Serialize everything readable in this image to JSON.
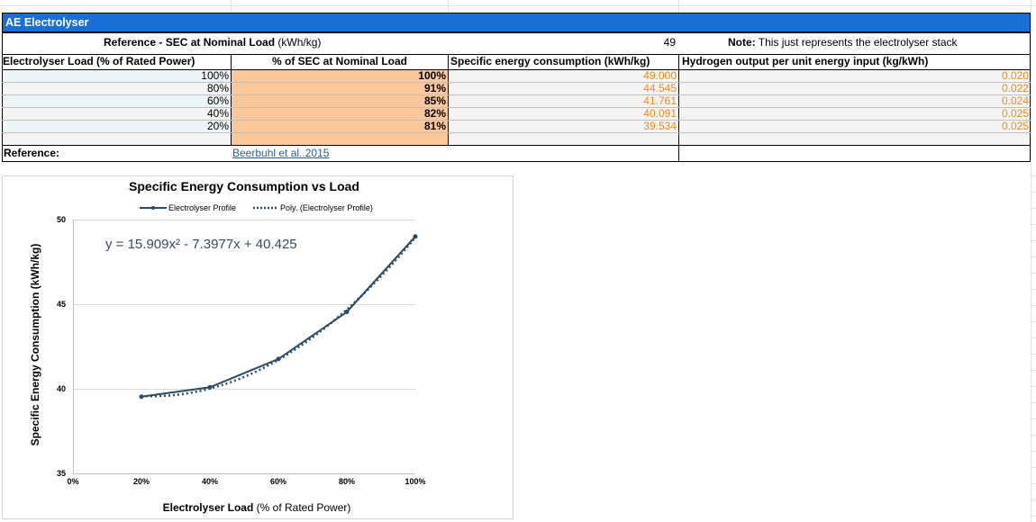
{
  "sheet": {
    "title": "AE Electrolyser",
    "reference_label": "Reference - SEC at Nominal Load",
    "reference_unit": "(kWh/kg)",
    "reference_value": "49",
    "note_label": "Note:",
    "note_text": "This just represents the electrolyser stack",
    "headers": {
      "load": "Electrolyser Load (% of Rated Power)",
      "pct_sec": "% of SEC at Nominal Load",
      "sec": "Specific energy consumption (kWh/kg)",
      "h2": "Hydrogen output per unit energy input (kg/kWh)"
    },
    "rows": [
      {
        "load": "100%",
        "pct": "100%",
        "sec": "49.000",
        "h2": "0.020"
      },
      {
        "load": "80%",
        "pct": "91%",
        "sec": "44.545",
        "h2": "0.022"
      },
      {
        "load": "60%",
        "pct": "85%",
        "sec": "41.761",
        "h2": "0.024"
      },
      {
        "load": "40%",
        "pct": "82%",
        "sec": "40.091",
        "h2": "0.025"
      },
      {
        "load": "20%",
        "pct": "81%",
        "sec": "39.534",
        "h2": "0.025"
      }
    ],
    "reference_row_label": "Reference:",
    "reference_link": "Beerbuhl et al..2015"
  },
  "colors": {
    "title_bg": "#1a6fd6",
    "pct_cell_bg": "#fcc79a",
    "row_tint_a": "#eef5f9",
    "row_tint_b": "#f4f4f4",
    "value_orange": "#f08a18",
    "series": "#2b4a63"
  },
  "chart_data": {
    "type": "line",
    "title": "Specific Energy Consumption vs Load",
    "xlabel": "Electrolyser Load",
    "xlabel_suffix": "(% of Rated Power)",
    "ylabel": "Specific Energy Consumption (kWh/kg)",
    "xlim": [
      0,
      100
    ],
    "ylim": [
      35,
      50
    ],
    "x_ticks": [
      "0%",
      "20%",
      "40%",
      "60%",
      "80%",
      "100%"
    ],
    "x_tick_values": [
      0,
      20,
      40,
      60,
      80,
      100
    ],
    "y_ticks": [
      "35",
      "40",
      "45",
      "50"
    ],
    "y_tick_values": [
      35,
      40,
      45,
      50
    ],
    "grid": true,
    "legend_placement": "top",
    "series": [
      {
        "name": "Electrolyser Profile",
        "style": "solid-markers",
        "x": [
          20,
          40,
          60,
          80,
          100
        ],
        "y": [
          39.534,
          40.091,
          41.761,
          44.545,
          49.0
        ]
      }
    ],
    "trendline": {
      "name": "Poly. (Electrolyser Profile)",
      "style": "dotted",
      "coefficients": {
        "a": 15.909,
        "b": -7.3977,
        "c": 40.425
      }
    },
    "equation": "y = 15.909x² - 7.3977x + 40.425"
  }
}
